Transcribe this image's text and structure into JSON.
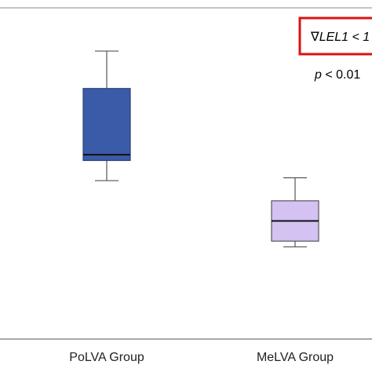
{
  "chart_data": {
    "type": "box",
    "categories": [
      "PoLVA Group",
      "MeLVA Group"
    ],
    "boxes": [
      {
        "category": "PoLVA Group",
        "whisker_low": 0.55,
        "q1": 0.62,
        "median": 0.64,
        "q3": 0.87,
        "whisker_high": 1.0,
        "fill_color": "#3a5ba8",
        "edge_color": "#2a3f7a"
      },
      {
        "category": "MeLVA Group",
        "whisker_low": 0.32,
        "q1": 0.34,
        "median": 0.41,
        "q3": 0.48,
        "whisker_high": 0.56,
        "fill_color": "#d4c2f2",
        "edge_color": "#555555"
      }
    ],
    "ylim": [
      0,
      1.15
    ],
    "xlabel": "",
    "ylabel": "",
    "grid": false,
    "annotations": {
      "boxed_text": "∇LEL1 < 1",
      "boxed_color": "#dd1111",
      "p_symbol": "p",
      "p_rest": " < 0.01"
    }
  }
}
